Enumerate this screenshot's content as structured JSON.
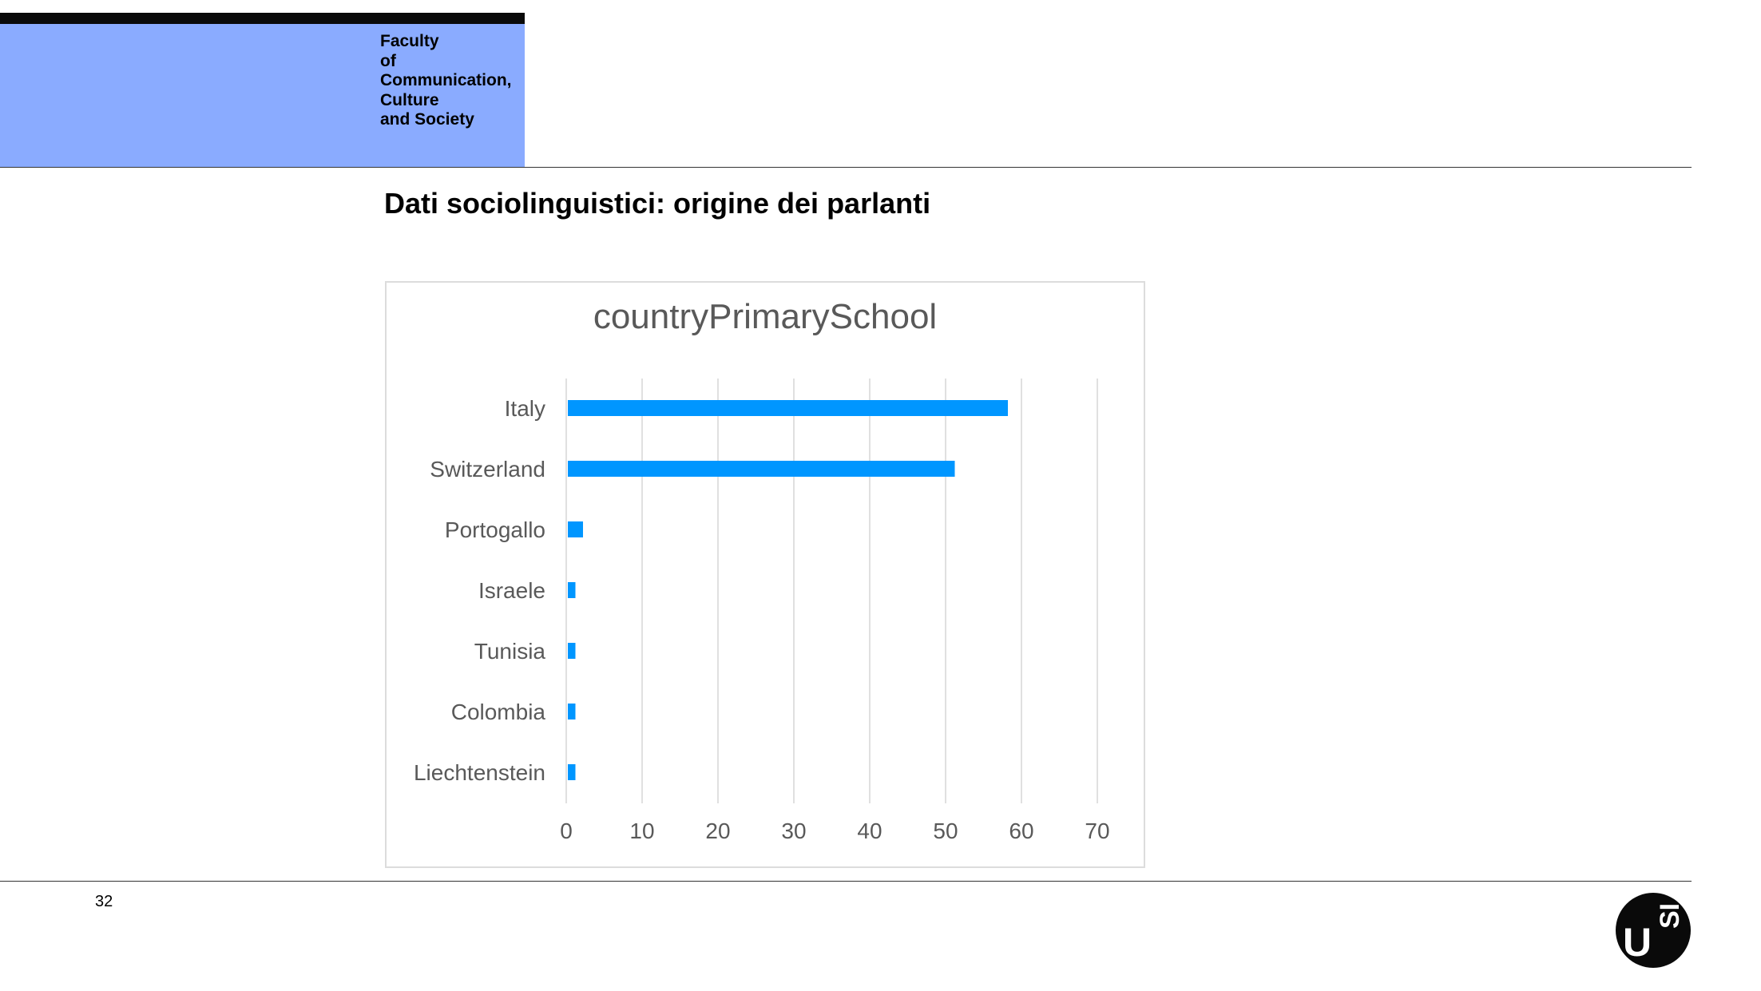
{
  "header": {
    "faculty_lines": [
      "Faculty",
      "of",
      "Communication,",
      "Culture",
      "and Society"
    ]
  },
  "slide": {
    "title": "Dati sociolinguistici: origine dei parlanti",
    "page_number": "32"
  },
  "logo": {
    "letter_u": "U",
    "letters_si": "SI"
  },
  "colors": {
    "header_blue": "#8aabff",
    "bar_blue": "#0096ff",
    "grid": "#e0e0e0",
    "text_gray": "#595959"
  },
  "chart_data": {
    "type": "bar",
    "orientation": "horizontal",
    "title": "countryPrimarySchool",
    "categories": [
      "Italy",
      "Switzerland",
      "Portogallo",
      "Israele",
      "Tunisia",
      "Colombia",
      "Liechtenstein"
    ],
    "values": [
      58,
      51,
      2,
      1,
      1,
      1,
      1
    ],
    "xlim": [
      0,
      70
    ],
    "xticks": [
      0,
      10,
      20,
      30,
      40,
      50,
      60,
      70
    ],
    "grid": true,
    "legend": "none"
  }
}
